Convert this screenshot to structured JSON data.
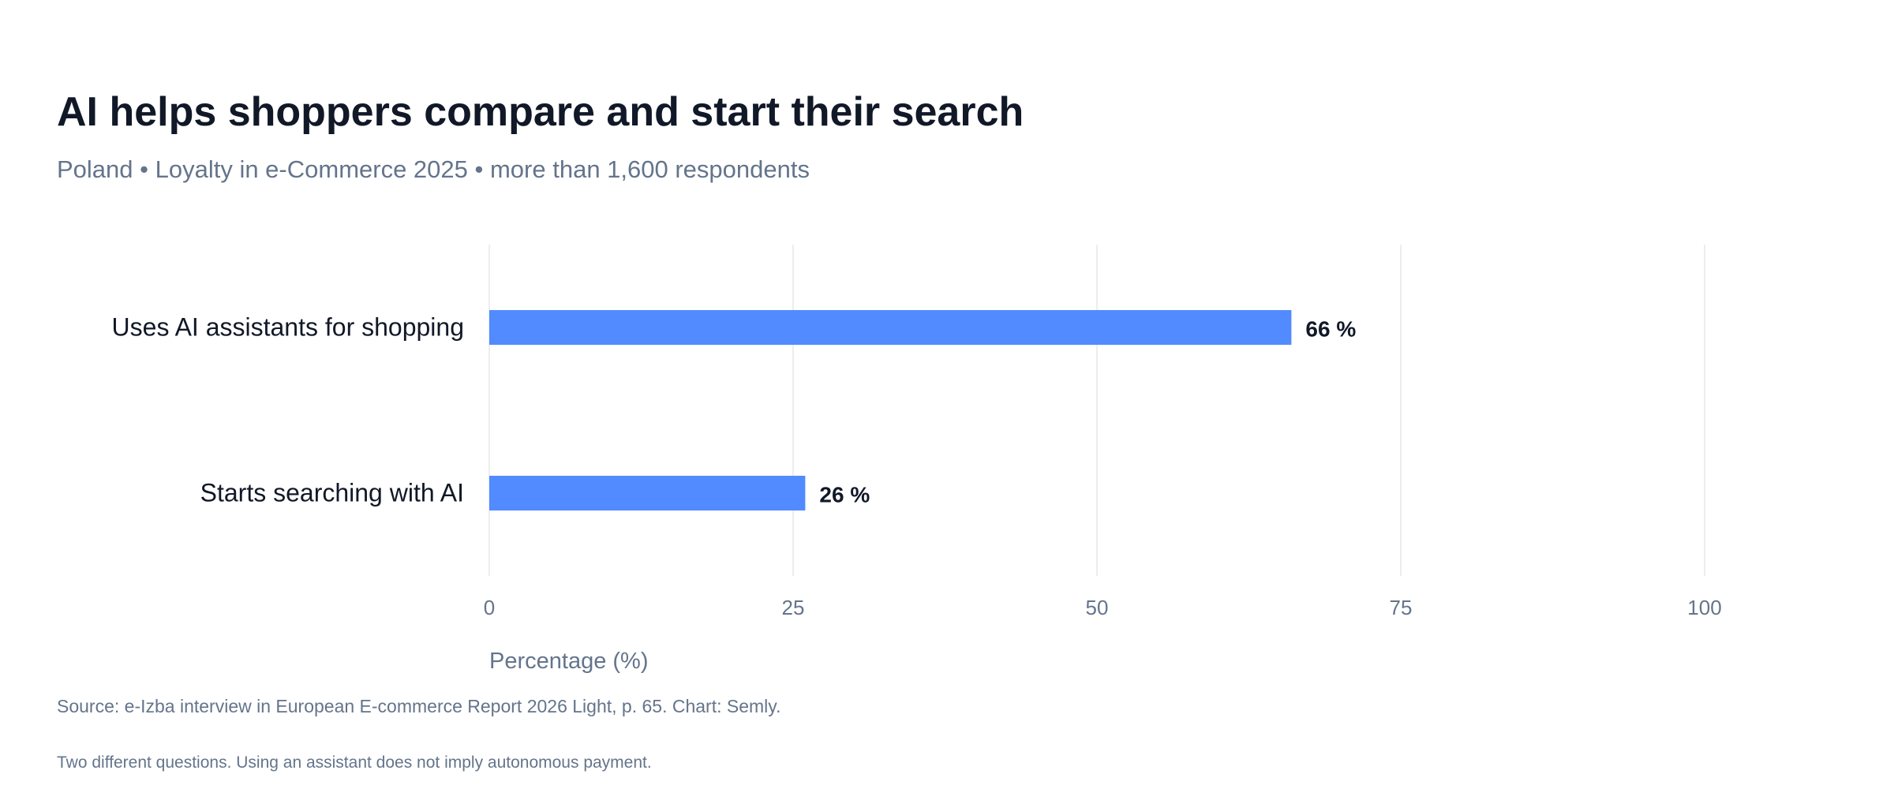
{
  "header": {
    "title": "AI helps shoppers compare and start their search",
    "subtitle": "Poland • Loyalty in e-Commerce 2025 • more than 1,600 respondents"
  },
  "footer": {
    "source": "Source: e-Izba interview in European E-commerce Report 2026 Light, p. 65. Chart: Semly.",
    "note": "Two different questions. Using an assistant does not imply autonomous payment."
  },
  "colors": {
    "bar": "#528bff",
    "grid": "#e5e7eb",
    "label": "#111827",
    "muted": "#64748b"
  },
  "chart_data": {
    "type": "bar",
    "orientation": "horizontal",
    "title": "AI helps shoppers compare and start their search",
    "subtitle": "Poland • Loyalty in e-Commerce 2025 • more than 1,600 respondents",
    "categories": [
      "Uses AI assistants for shopping",
      "Starts searching with AI"
    ],
    "values": [
      66,
      26
    ],
    "value_labels": [
      "66 %",
      "26 %"
    ],
    "xlabel": "Percentage (%)",
    "ylabel": "",
    "xlim": [
      0,
      100
    ],
    "xticks": [
      0,
      25,
      50,
      75,
      100
    ],
    "xtick_labels": [
      "0",
      "25",
      "50",
      "75",
      "100"
    ],
    "grid": "vertical",
    "legend": "none"
  }
}
